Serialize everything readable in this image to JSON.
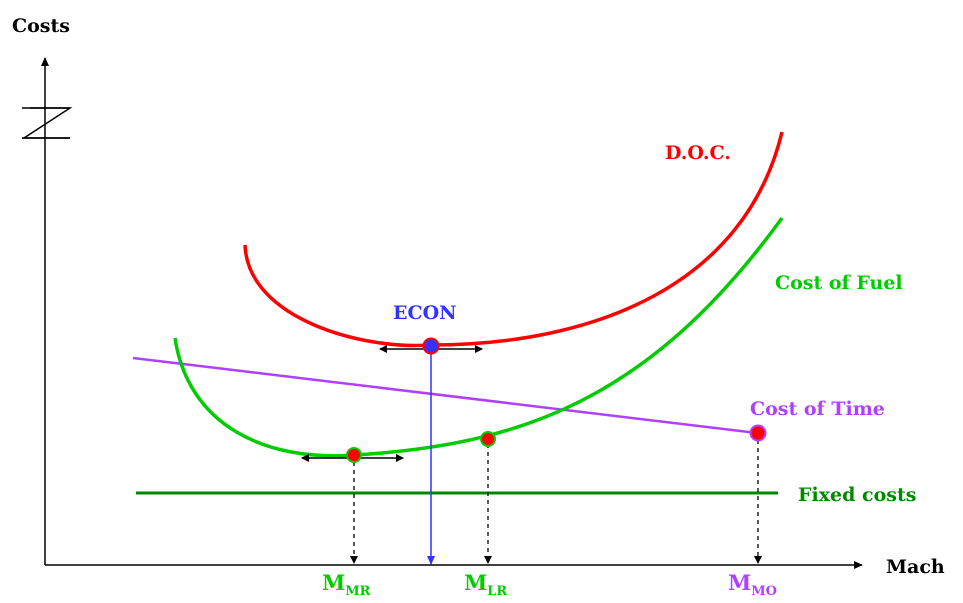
{
  "axes": {
    "y_label": "Costs",
    "x_label": "Mach"
  },
  "curves": {
    "doc": {
      "label": "D.O.C.",
      "color": "#ff0000"
    },
    "fuel": {
      "label": "Cost of Fuel",
      "color": "#00cc00"
    },
    "time": {
      "label": "Cost of Time",
      "color": "#b040ff"
    },
    "fixed": {
      "label": "Fixed costs",
      "color": "#008800"
    }
  },
  "econ": {
    "label": "ECON",
    "color": "#3333ff"
  },
  "mach_points": {
    "mmr": {
      "main": "M",
      "sub": "MR",
      "color": "#00cc00"
    },
    "mlr": {
      "main": "M",
      "sub": "LR",
      "color": "#00cc00"
    },
    "mmo": {
      "main": "M",
      "sub": "MO",
      "color": "#b040ff"
    }
  },
  "marker_color": "#ff0000"
}
